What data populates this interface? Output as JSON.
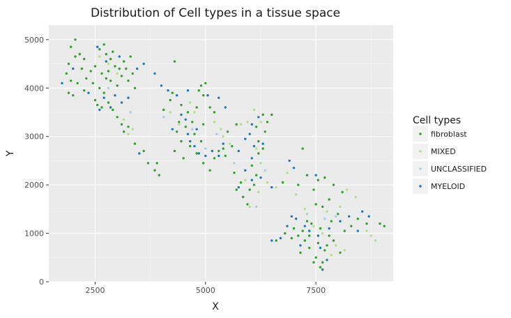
{
  "chart_data": {
    "type": "scatter",
    "title": "Distribution of Cell types in a tissue space",
    "xlabel": "X",
    "ylabel": "Y",
    "xlim": [
      1450,
      9250
    ],
    "ylim": [
      0,
      5300
    ],
    "x_ticks": [
      2500,
      5000,
      7500
    ],
    "y_ticks": [
      0,
      1000,
      2000,
      3000,
      4000,
      5000
    ],
    "x_tick_labels": [
      "2500",
      "5000",
      "7500"
    ],
    "y_tick_labels": [
      "0",
      "1000",
      "2000",
      "3000",
      "4000",
      "5000"
    ],
    "grid": true,
    "legend": {
      "title": "Cell types",
      "placement": "right"
    },
    "series": [
      {
        "name": "fibroblast",
        "color": "#33a02c",
        "points": [
          [
            1950,
            4850
          ],
          [
            2050,
            5000
          ],
          [
            2150,
            4700
          ],
          [
            2250,
            4600
          ],
          [
            2050,
            4650
          ],
          [
            1900,
            4500
          ],
          [
            2200,
            4400
          ],
          [
            2400,
            4350
          ],
          [
            1850,
            4300
          ],
          [
            1950,
            4150
          ],
          [
            2100,
            4100
          ],
          [
            1900,
            3900
          ],
          [
            2000,
            3850
          ],
          [
            2250,
            3950
          ],
          [
            2300,
            4200
          ],
          [
            2450,
            4100
          ],
          [
            2500,
            4450
          ],
          [
            2600,
            4800
          ],
          [
            2700,
            4900
          ],
          [
            2750,
            4700
          ],
          [
            2850,
            4600
          ],
          [
            2900,
            4750
          ],
          [
            2950,
            4450
          ],
          [
            3050,
            4400
          ],
          [
            2800,
            4350
          ],
          [
            2650,
            4300
          ],
          [
            2750,
            4200
          ],
          [
            2850,
            4150
          ],
          [
            3000,
            4050
          ],
          [
            3100,
            4250
          ],
          [
            3150,
            4550
          ],
          [
            3300,
            4650
          ],
          [
            3200,
            4400
          ],
          [
            3250,
            4150
          ],
          [
            3350,
            4300
          ],
          [
            3400,
            4000
          ],
          [
            2600,
            4000
          ],
          [
            2700,
            3900
          ],
          [
            2500,
            3750
          ],
          [
            2550,
            3650
          ],
          [
            2650,
            3600
          ],
          [
            2800,
            3700
          ],
          [
            2900,
            3550
          ],
          [
            3000,
            3400
          ],
          [
            3100,
            3250
          ],
          [
            3150,
            3100
          ],
          [
            3250,
            3200
          ],
          [
            3400,
            2850
          ],
          [
            3600,
            2700
          ],
          [
            3700,
            2450
          ],
          [
            3850,
            2300
          ],
          [
            3950,
            2200
          ],
          [
            3900,
            2450
          ],
          [
            4050,
            3550
          ],
          [
            4200,
            3750
          ],
          [
            4250,
            3900
          ],
          [
            4300,
            4550
          ],
          [
            4450,
            3650
          ],
          [
            4600,
            3500
          ],
          [
            4550,
            3200
          ],
          [
            4400,
            3300
          ],
          [
            4350,
            3100
          ],
          [
            4450,
            2900
          ],
          [
            4300,
            2700
          ],
          [
            4500,
            2550
          ],
          [
            4650,
            2800
          ],
          [
            4750,
            3050
          ],
          [
            4700,
            3300
          ],
          [
            4800,
            3600
          ],
          [
            4850,
            3950
          ],
          [
            4900,
            4050
          ],
          [
            5000,
            4100
          ],
          [
            4950,
            3850
          ],
          [
            5100,
            3600
          ],
          [
            5200,
            3500
          ],
          [
            4950,
            3250
          ],
          [
            4900,
            2900
          ],
          [
            4800,
            2650
          ],
          [
            4950,
            2450
          ],
          [
            5100,
            2300
          ],
          [
            5200,
            2550
          ],
          [
            5300,
            2700
          ],
          [
            5400,
            2750
          ],
          [
            5450,
            2600
          ],
          [
            5600,
            2800
          ],
          [
            5500,
            3100
          ],
          [
            5700,
            3250
          ],
          [
            5650,
            2250
          ],
          [
            5800,
            2050
          ],
          [
            5700,
            1900
          ],
          [
            5850,
            1750
          ],
          [
            5950,
            1600
          ],
          [
            6000,
            1900
          ],
          [
            6100,
            2000
          ],
          [
            6150,
            2200
          ],
          [
            6050,
            2400
          ],
          [
            6200,
            2650
          ],
          [
            6300,
            2750
          ],
          [
            6200,
            2900
          ],
          [
            6350,
            3100
          ],
          [
            6400,
            3300
          ],
          [
            6500,
            3450
          ],
          [
            6300,
            3450
          ],
          [
            6150,
            3200
          ],
          [
            7200,
            2750
          ],
          [
            7300,
            2200
          ],
          [
            7550,
            2100
          ],
          [
            7450,
            1900
          ],
          [
            7700,
            2150
          ],
          [
            7900,
            2000
          ],
          [
            8100,
            1850
          ],
          [
            7800,
            1700
          ],
          [
            7650,
            1550
          ],
          [
            7500,
            1600
          ],
          [
            8000,
            1400
          ],
          [
            7850,
            1250
          ],
          [
            7400,
            1200
          ],
          [
            7200,
            1050
          ],
          [
            7100,
            950
          ],
          [
            6950,
            900
          ],
          [
            7250,
            850
          ],
          [
            7350,
            700
          ],
          [
            7150,
            600
          ],
          [
            7500,
            500
          ],
          [
            7650,
            400
          ],
          [
            7700,
            650
          ],
          [
            7550,
            800
          ],
          [
            7800,
            950
          ],
          [
            7900,
            850
          ],
          [
            8050,
            600
          ],
          [
            8150,
            1050
          ],
          [
            8300,
            1150
          ],
          [
            8450,
            1300
          ],
          [
            8650,
            1200
          ],
          [
            8950,
            1200
          ],
          [
            9050,
            1150
          ],
          [
            6600,
            850
          ],
          [
            6800,
            1000
          ],
          [
            7000,
            1100
          ],
          [
            7300,
            1250
          ],
          [
            7600,
            1100
          ],
          [
            7750,
            750
          ],
          [
            7450,
            400
          ],
          [
            7600,
            300
          ],
          [
            7350,
            950
          ],
          [
            6750,
            2050
          ],
          [
            7100,
            2000
          ]
        ]
      },
      {
        "name": "MIXED",
        "color": "#b2df8a",
        "points": [
          [
            2600,
            4650
          ],
          [
            2800,
            4500
          ],
          [
            3000,
            4300
          ],
          [
            3150,
            3350
          ],
          [
            3250,
            3050
          ],
          [
            3350,
            3150
          ],
          [
            4200,
            3500
          ],
          [
            4400,
            3250
          ],
          [
            4650,
            3700
          ],
          [
            4750,
            3500
          ],
          [
            5200,
            3300
          ],
          [
            5350,
            3150
          ],
          [
            5400,
            3000
          ],
          [
            5550,
            2850
          ],
          [
            5800,
            3250
          ],
          [
            5950,
            3300
          ],
          [
            6100,
            3550
          ],
          [
            6250,
            3300
          ],
          [
            6150,
            2750
          ],
          [
            6250,
            2450
          ],
          [
            5900,
            2100
          ],
          [
            6000,
            1550
          ],
          [
            6200,
            1850
          ],
          [
            6400,
            2050
          ],
          [
            6600,
            1950
          ],
          [
            6850,
            2250
          ],
          [
            7050,
            1800
          ],
          [
            7250,
            1500
          ],
          [
            7450,
            1150
          ],
          [
            7650,
            1000
          ],
          [
            7750,
            1450
          ],
          [
            8050,
            1550
          ],
          [
            8200,
            1900
          ],
          [
            8400,
            1750
          ],
          [
            8750,
            950
          ],
          [
            8650,
            1050
          ],
          [
            8850,
            850
          ],
          [
            7950,
            750
          ],
          [
            8150,
            650
          ],
          [
            7850,
            550
          ]
        ]
      },
      {
        "name": "UNCLASSIFIED",
        "color": "#a6cee3",
        "points": [
          [
            2800,
            4000
          ],
          [
            3300,
            3500
          ],
          [
            4050,
            3400
          ],
          [
            4700,
            3150
          ],
          [
            5000,
            2750
          ],
          [
            5250,
            3050
          ],
          [
            5650,
            2450
          ],
          [
            6150,
            1550
          ],
          [
            6350,
            2300
          ],
          [
            7300,
            1400
          ],
          [
            7700,
            1300
          ],
          [
            7950,
            1350
          ]
        ]
      },
      {
        "name": "MYELOID",
        "color": "#1f78b4",
        "points": [
          [
            1750,
            4100
          ],
          [
            2000,
            4400
          ],
          [
            2350,
            3900
          ],
          [
            2550,
            4850
          ],
          [
            2750,
            4550
          ],
          [
            3050,
            4650
          ],
          [
            3450,
            4400
          ],
          [
            3600,
            4500
          ],
          [
            2700,
            3800
          ],
          [
            2850,
            3600
          ],
          [
            2950,
            3850
          ],
          [
            3100,
            3700
          ],
          [
            3250,
            3800
          ],
          [
            2600,
            3550
          ],
          [
            3500,
            2650
          ],
          [
            3850,
            4300
          ],
          [
            4000,
            4050
          ],
          [
            4150,
            3950
          ],
          [
            4350,
            3850
          ],
          [
            4600,
            3950
          ],
          [
            4450,
            3450
          ],
          [
            4550,
            3350
          ],
          [
            4250,
            3150
          ],
          [
            4600,
            3050
          ],
          [
            4800,
            3150
          ],
          [
            4650,
            2900
          ],
          [
            4750,
            2800
          ],
          [
            4850,
            2650
          ],
          [
            5000,
            2600
          ],
          [
            5150,
            2700
          ],
          [
            5300,
            2600
          ],
          [
            5050,
            3850
          ],
          [
            5300,
            3800
          ],
          [
            5450,
            3600
          ],
          [
            5400,
            2850
          ],
          [
            5750,
            2700
          ],
          [
            5900,
            2950
          ],
          [
            6000,
            3050
          ],
          [
            6050,
            3250
          ],
          [
            6200,
            3400
          ],
          [
            6100,
            2800
          ],
          [
            6050,
            2550
          ],
          [
            6300,
            2850
          ],
          [
            5900,
            2300
          ],
          [
            5750,
            1950
          ],
          [
            6050,
            2100
          ],
          [
            6250,
            2150
          ],
          [
            6500,
            1950
          ],
          [
            6500,
            850
          ],
          [
            6700,
            900
          ],
          [
            6850,
            1150
          ],
          [
            7050,
            1300
          ],
          [
            7250,
            1150
          ],
          [
            7350,
            1050
          ],
          [
            7550,
            950
          ],
          [
            7800,
            1100
          ],
          [
            8050,
            1250
          ],
          [
            8250,
            1350
          ],
          [
            8450,
            1050
          ],
          [
            8550,
            1450
          ],
          [
            8700,
            1350
          ],
          [
            7600,
            700
          ],
          [
            7750,
            450
          ],
          [
            7650,
            250
          ],
          [
            7150,
            750
          ],
          [
            6950,
            1350
          ],
          [
            7500,
            2200
          ],
          [
            7000,
            2350
          ],
          [
            6900,
            2500
          ]
        ]
      }
    ]
  }
}
